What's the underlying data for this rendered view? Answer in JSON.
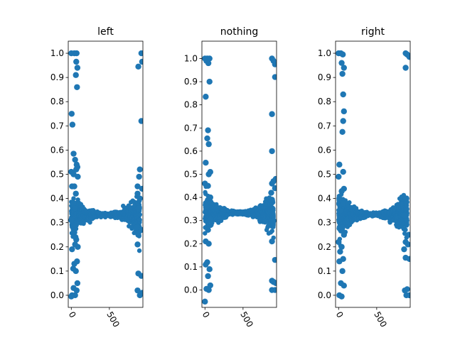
{
  "chart_data": [
    {
      "type": "scatter",
      "title": "left",
      "color": "#1f77b4",
      "xlim": [
        -40,
        940
      ],
      "ylim": [
        -0.05,
        1.05
      ],
      "xticks": [
        {
          "value": 0,
          "label": "0"
        },
        {
          "value": 500,
          "label": "500"
        }
      ],
      "yticks": [
        {
          "value": 0.0,
          "label": "0.0"
        },
        {
          "value": 0.1,
          "label": "0.1"
        },
        {
          "value": 0.2,
          "label": "0.2"
        },
        {
          "value": 0.3,
          "label": "0.3"
        },
        {
          "value": 0.4,
          "label": "0.4"
        },
        {
          "value": 0.5,
          "label": "0.5"
        },
        {
          "value": 0.6,
          "label": "0.6"
        },
        {
          "value": 0.7,
          "label": "0.7"
        },
        {
          "value": 0.8,
          "label": "0.8"
        },
        {
          "value": 0.9,
          "label": "0.9"
        },
        {
          "value": 1.0,
          "label": "1.0"
        }
      ],
      "tick_rotation": -60,
      "points": [
        [
          0,
          1.0
        ],
        [
          40,
          1.0
        ],
        [
          70,
          1.0
        ],
        [
          65,
          0.965
        ],
        [
          80,
          0.94
        ],
        [
          60,
          0.91
        ],
        [
          75,
          0.86
        ],
        [
          5,
          0.75
        ],
        [
          15,
          0.705
        ],
        [
          30,
          0.585
        ],
        [
          50,
          0.56
        ],
        [
          70,
          0.54
        ],
        [
          80,
          0.53
        ],
        [
          65,
          0.52
        ],
        [
          0,
          0.51
        ],
        [
          30,
          0.5
        ],
        [
          85,
          0.49
        ],
        [
          10,
          0.45
        ],
        [
          40,
          0.45
        ],
        [
          60,
          0.42
        ],
        [
          30,
          0.38
        ],
        [
          50,
          0.36
        ],
        [
          0,
          0.31
        ],
        [
          60,
          0.29
        ],
        [
          40,
          0.26
        ],
        [
          55,
          0.24
        ],
        [
          65,
          0.23
        ],
        [
          50,
          0.21
        ],
        [
          85,
          0.2
        ],
        [
          10,
          0.19
        ],
        [
          40,
          0.13
        ],
        [
          75,
          0.14
        ],
        [
          25,
          0.11
        ],
        [
          60,
          0.1
        ],
        [
          80,
          0.05
        ],
        [
          30,
          0.03
        ],
        [
          70,
          0.02
        ],
        [
          10,
          0.0
        ],
        [
          50,
          0.0
        ],
        [
          0,
          -0.005
        ],
        [
          920,
          1.0
        ],
        [
          880,
          0.945
        ],
        [
          930,
          0.965
        ],
        [
          920,
          0.72
        ],
        [
          900,
          0.52
        ],
        [
          890,
          0.49
        ],
        [
          870,
          0.45
        ],
        [
          930,
          0.44
        ],
        [
          870,
          0.42
        ],
        [
          900,
          0.4
        ],
        [
          880,
          0.36
        ],
        [
          860,
          0.28
        ],
        [
          920,
          0.27
        ],
        [
          880,
          0.25
        ],
        [
          870,
          0.21
        ],
        [
          880,
          0.09
        ],
        [
          920,
          0.08
        ],
        [
          870,
          0.02
        ],
        [
          900,
          0.0
        ],
        [
          930,
          0.01
        ]
      ]
    },
    {
      "type": "scatter",
      "title": "nothing",
      "color": "#1f77b4",
      "xlim": [
        -40,
        940
      ],
      "ylim": [
        -0.075,
        1.075
      ],
      "xticks": [
        {
          "value": 0,
          "label": "0"
        },
        {
          "value": 500,
          "label": "500"
        }
      ],
      "yticks": [
        {
          "value": 0.0,
          "label": "0.0"
        },
        {
          "value": 0.1,
          "label": "0.1"
        },
        {
          "value": 0.2,
          "label": "0.2"
        },
        {
          "value": 0.3,
          "label": "0.3"
        },
        {
          "value": 0.4,
          "label": "0.4"
        },
        {
          "value": 0.5,
          "label": "0.5"
        },
        {
          "value": 0.6,
          "label": "0.6"
        },
        {
          "value": 0.7,
          "label": "0.7"
        },
        {
          "value": 0.8,
          "label": "0.8"
        },
        {
          "value": 0.9,
          "label": "0.9"
        },
        {
          "value": 1.0,
          "label": "1.0"
        }
      ],
      "tick_rotation": -60,
      "points": [
        [
          0,
          1.0
        ],
        [
          30,
          1.0
        ],
        [
          60,
          1.0
        ],
        [
          20,
          0.99
        ],
        [
          45,
          0.98
        ],
        [
          60,
          0.9
        ],
        [
          10,
          0.835
        ],
        [
          40,
          0.69
        ],
        [
          30,
          0.655
        ],
        [
          50,
          0.63
        ],
        [
          10,
          0.55
        ],
        [
          70,
          0.51
        ],
        [
          50,
          0.5
        ],
        [
          0,
          0.46
        ],
        [
          40,
          0.45
        ],
        [
          70,
          0.4
        ],
        [
          20,
          0.36
        ],
        [
          60,
          0.3
        ],
        [
          40,
          0.26
        ],
        [
          10,
          0.21
        ],
        [
          50,
          0.2
        ],
        [
          30,
          0.12
        ],
        [
          10,
          0.11
        ],
        [
          60,
          0.09
        ],
        [
          40,
          0.06
        ],
        [
          70,
          0.02
        ],
        [
          20,
          0.005
        ],
        [
          50,
          0.0
        ],
        [
          0,
          -0.05
        ],
        [
          880,
          1.0
        ],
        [
          900,
          0.99
        ],
        [
          920,
          0.975
        ],
        [
          920,
          0.92
        ],
        [
          880,
          0.76
        ],
        [
          880,
          0.6
        ],
        [
          930,
          0.48
        ],
        [
          900,
          0.47
        ],
        [
          880,
          0.46
        ],
        [
          920,
          0.44
        ],
        [
          870,
          0.42
        ],
        [
          880,
          0.39
        ],
        [
          900,
          0.3
        ],
        [
          880,
          0.21
        ],
        [
          920,
          0.13
        ],
        [
          880,
          0.04
        ],
        [
          900,
          0.035
        ],
        [
          930,
          0.03
        ],
        [
          880,
          0.0
        ],
        [
          920,
          0.0
        ]
      ]
    },
    {
      "type": "scatter",
      "title": "right",
      "color": "#1f77b4",
      "xlim": [
        -40,
        940
      ],
      "ylim": [
        -0.05,
        1.05
      ],
      "xticks": [
        {
          "value": 0,
          "label": "0"
        },
        {
          "value": 500,
          "label": "500"
        }
      ],
      "yticks": [
        {
          "value": 0.0,
          "label": "0.0"
        },
        {
          "value": 0.1,
          "label": "0.1"
        },
        {
          "value": 0.2,
          "label": "0.2"
        },
        {
          "value": 0.3,
          "label": "0.3"
        },
        {
          "value": 0.4,
          "label": "0.4"
        },
        {
          "value": 0.5,
          "label": "0.5"
        },
        {
          "value": 0.6,
          "label": "0.6"
        },
        {
          "value": 0.7,
          "label": "0.7"
        },
        {
          "value": 0.8,
          "label": "0.8"
        },
        {
          "value": 0.9,
          "label": "0.9"
        },
        {
          "value": 1.0,
          "label": "1.0"
        }
      ],
      "tick_rotation": -60,
      "points": [
        [
          0,
          1.0
        ],
        [
          30,
          1.0
        ],
        [
          55,
          0.995
        ],
        [
          40,
          0.96
        ],
        [
          70,
          0.94
        ],
        [
          50,
          0.915
        ],
        [
          60,
          0.83
        ],
        [
          70,
          0.76
        ],
        [
          60,
          0.72
        ],
        [
          50,
          0.675
        ],
        [
          10,
          0.54
        ],
        [
          0,
          0.49
        ],
        [
          60,
          0.51
        ],
        [
          70,
          0.44
        ],
        [
          40,
          0.43
        ],
        [
          10,
          0.4
        ],
        [
          60,
          0.38
        ],
        [
          20,
          0.35
        ],
        [
          50,
          0.28
        ],
        [
          70,
          0.25
        ],
        [
          0,
          0.22
        ],
        [
          40,
          0.2
        ],
        [
          20,
          0.18
        ],
        [
          60,
          0.15
        ],
        [
          10,
          0.14
        ],
        [
          50,
          0.1
        ],
        [
          30,
          0.05
        ],
        [
          70,
          0.04
        ],
        [
          10,
          0.0
        ],
        [
          40,
          -0.005
        ],
        [
          880,
          1.0
        ],
        [
          900,
          0.995
        ],
        [
          920,
          0.99
        ],
        [
          930,
          0.985
        ],
        [
          880,
          0.94
        ],
        [
          890,
          0.4
        ],
        [
          870,
          0.33
        ],
        [
          920,
          0.25
        ],
        [
          880,
          0.22
        ],
        [
          910,
          0.21
        ],
        [
          860,
          0.19
        ],
        [
          880,
          0.155
        ],
        [
          930,
          0.15
        ],
        [
          900,
          0.025
        ],
        [
          870,
          0.02
        ],
        [
          890,
          0.0
        ],
        [
          930,
          0.0
        ]
      ]
    }
  ]
}
